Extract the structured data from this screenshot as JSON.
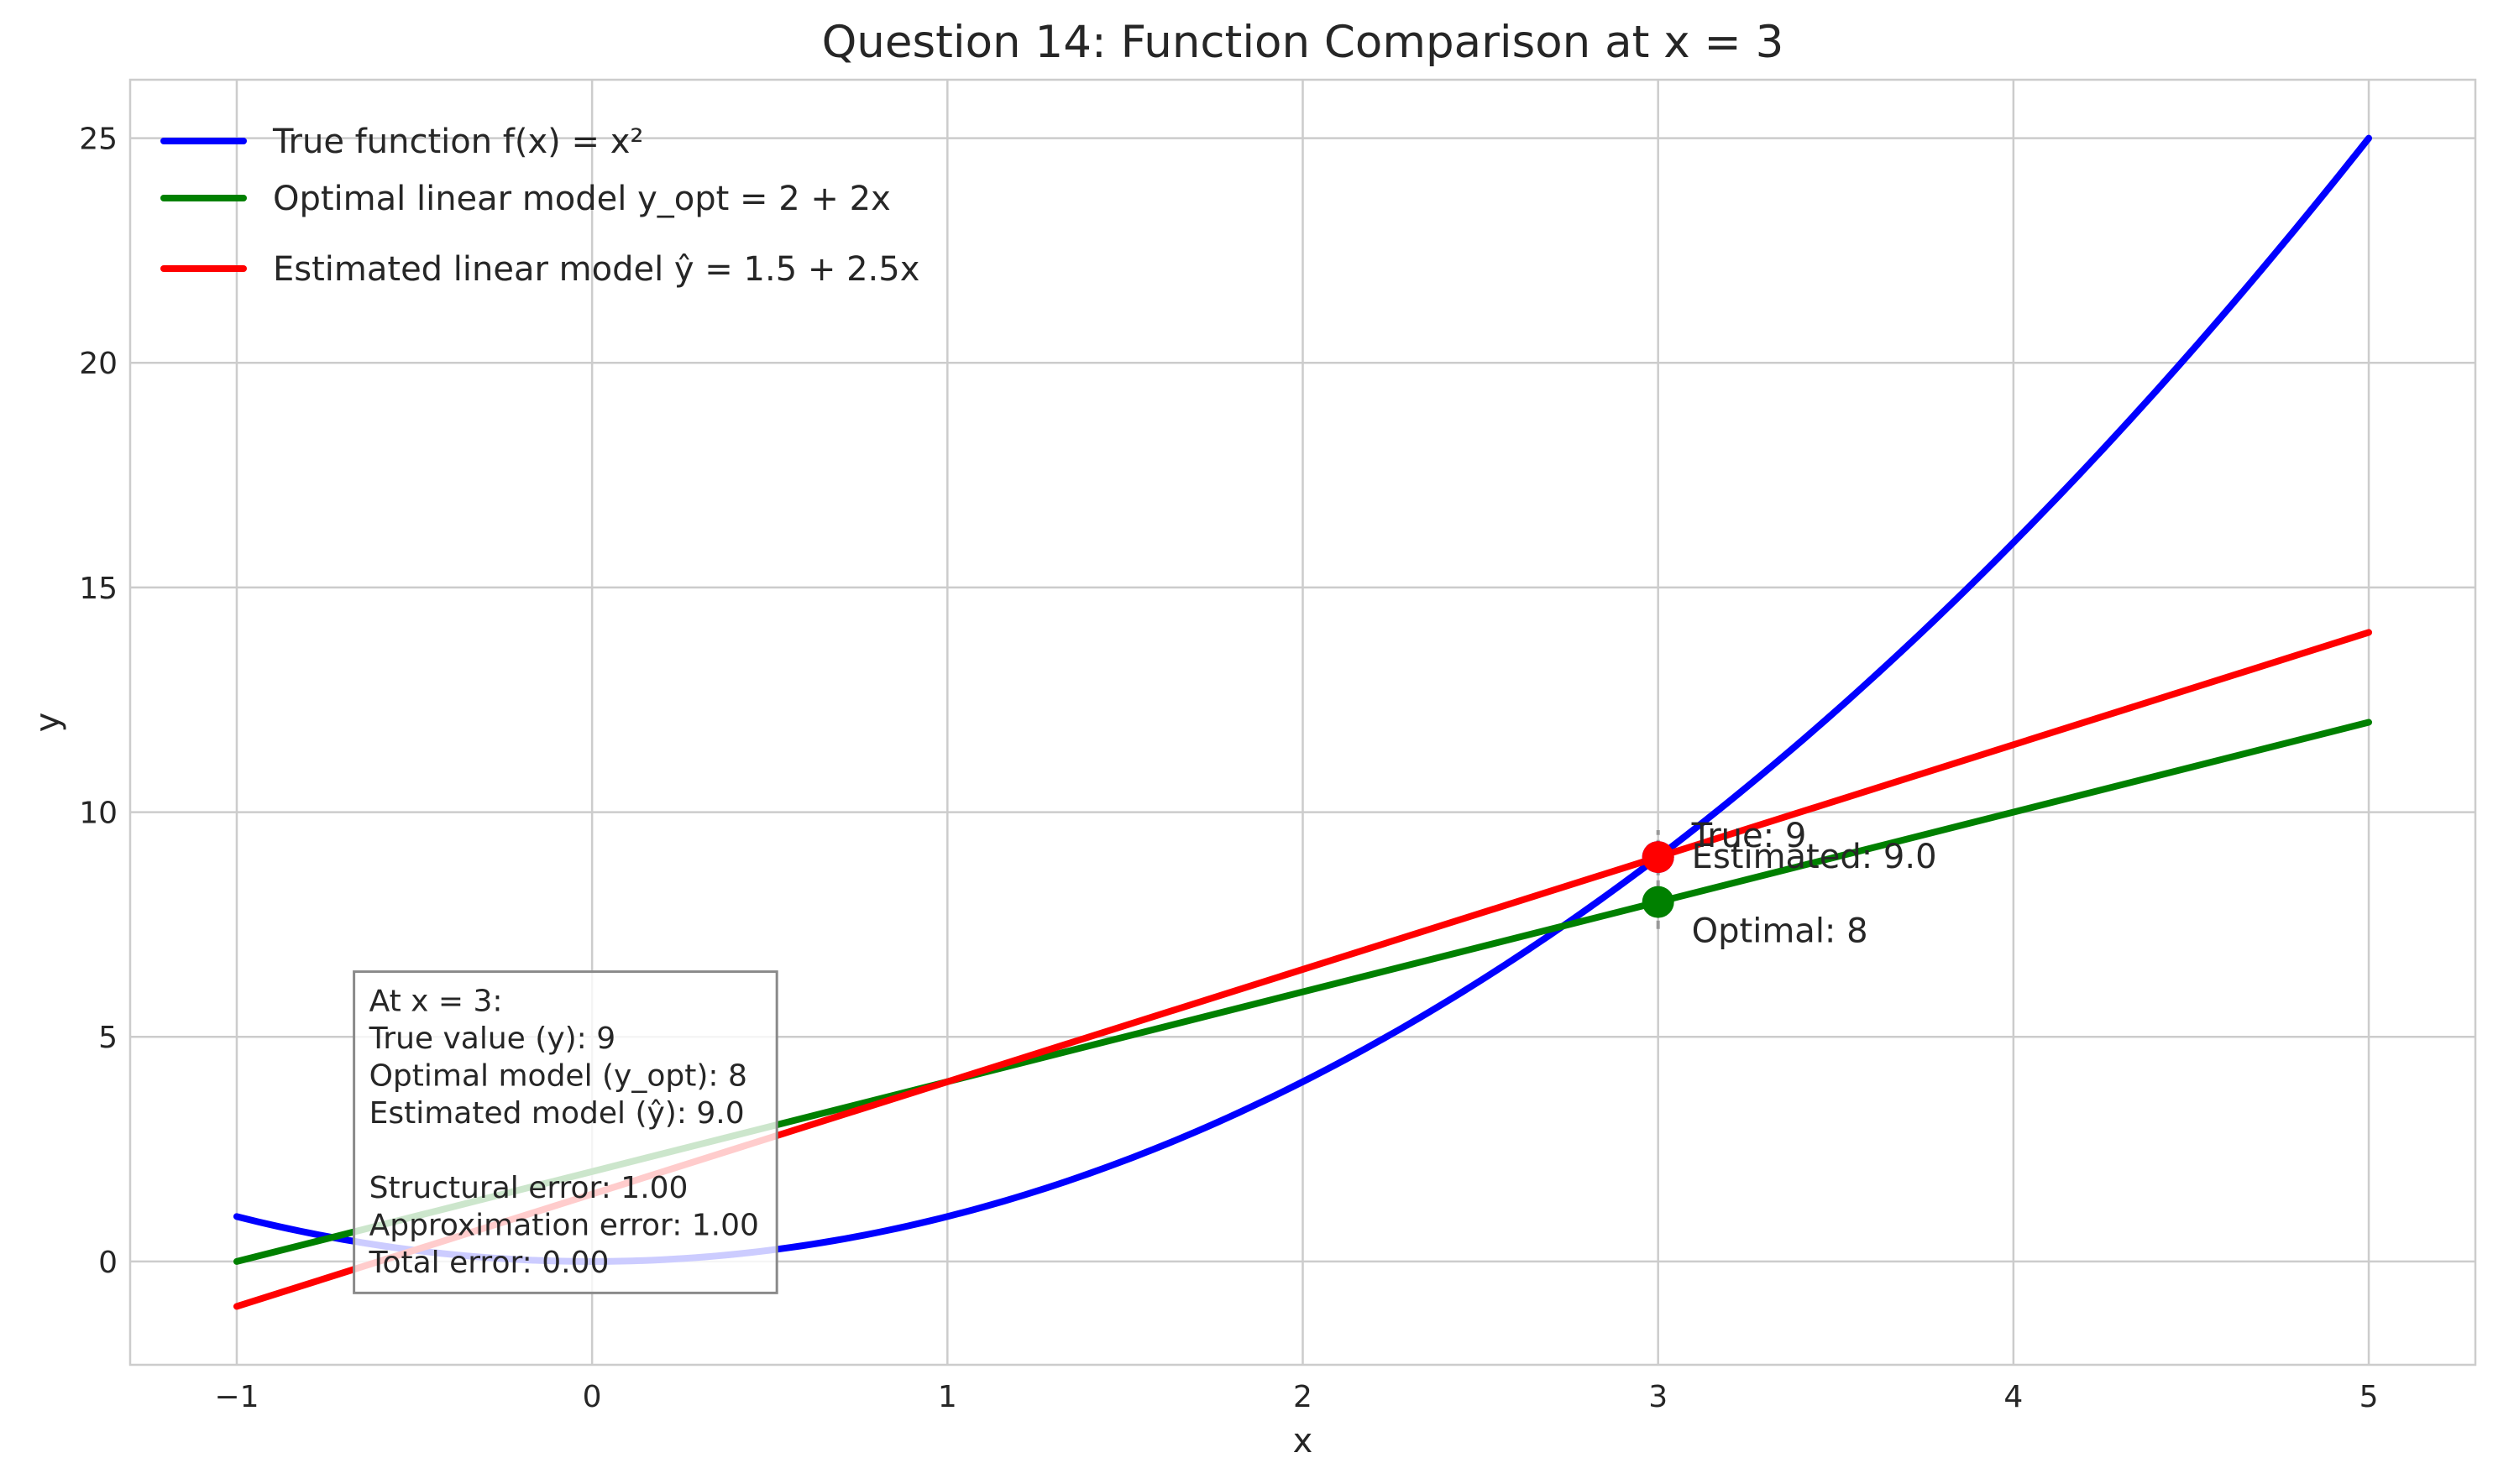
{
  "chart_data": {
    "type": "line",
    "title": "Question 14: Function Comparison at x = 3",
    "xlabel": "x",
    "ylabel": "y",
    "xlim": [
      -1.3,
      5.3
    ],
    "ylim": [
      -2.3,
      26.3
    ],
    "xticks": [
      -1,
      0,
      1,
      2,
      3,
      4,
      5
    ],
    "xtick_labels": [
      "−1",
      "0",
      "1",
      "2",
      "3",
      "4",
      "5"
    ],
    "yticks": [
      0,
      5,
      10,
      15,
      20,
      25
    ],
    "ytick_labels": [
      "0",
      "5",
      "10",
      "15",
      "20",
      "25"
    ],
    "grid": true,
    "legend_position": "top-left",
    "series": [
      {
        "name": "True function f(x) = x²",
        "color": "#0000ff",
        "kind": "quadratic",
        "coeffs": [
          0,
          0,
          1
        ],
        "x_range": [
          -1,
          5
        ]
      },
      {
        "name": "Optimal linear model y_opt = 2 + 2x",
        "color": "#008000",
        "kind": "linear",
        "coeffs": [
          2,
          2
        ],
        "x_range": [
          -1,
          5
        ]
      },
      {
        "name": "Estimated linear model ŷ = 1.5 + 2.5x",
        "color": "#ff0000",
        "kind": "linear",
        "coeffs": [
          1.5,
          2.5
        ],
        "x_range": [
          -1,
          5
        ]
      }
    ],
    "points": [
      {
        "x": 3,
        "y": 9,
        "color": "#0000ff",
        "label": "True: 9"
      },
      {
        "x": 3,
        "y": 8,
        "color": "#008000",
        "label": "Optimal: 8"
      },
      {
        "x": 3,
        "y": 9,
        "color": "#ff0000",
        "label": "Estimated: 9.0"
      }
    ],
    "vline": {
      "x": 3,
      "y_from": 7.4,
      "y_to": 9.6,
      "color": "#999999"
    },
    "info_box": {
      "lines": [
        "At x = 3:",
        "True value (y): 9",
        "Optimal model (y_opt): 8",
        "Estimated model (ŷ): 9.0",
        "",
        "Structural error: 1.00",
        "Approximation error: 1.00",
        "Total error: 0.00"
      ]
    }
  }
}
